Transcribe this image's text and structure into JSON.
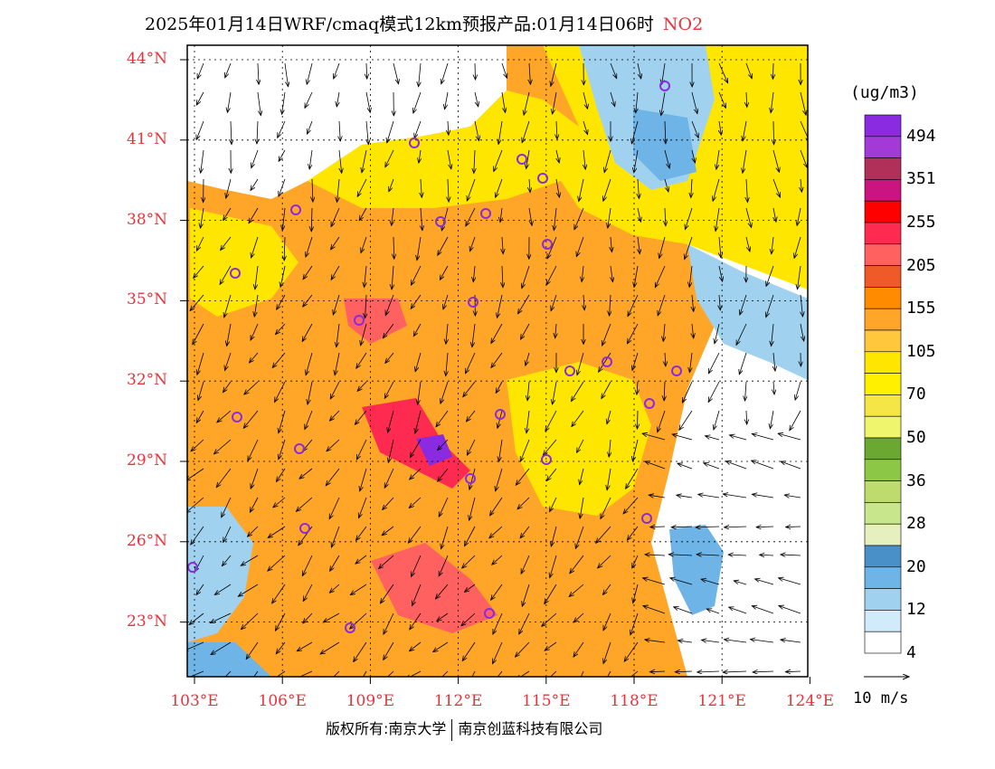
{
  "title": {
    "text": "2025年01月14日WRF/cmaq模式12km预报产品:01月14日06时",
    "species": "NO2"
  },
  "map": {
    "lat_labels": [
      "44°N",
      "41°N",
      "38°N",
      "35°N",
      "32°N",
      "29°N",
      "26°N",
      "23°N"
    ],
    "lon_labels": [
      "103°E",
      "106°E",
      "109°E",
      "112°E",
      "115°E",
      "118°E",
      "121°E",
      "124°E"
    ],
    "extent": {
      "lon_min": 103,
      "lon_max": 124,
      "lat_min": 21,
      "lat_max": 44
    }
  },
  "colorbar": {
    "unit": "(ug/m3)",
    "labels": [
      "494",
      "351",
      "255",
      "205",
      "155",
      "105",
      "70",
      "50",
      "36",
      "28",
      "20",
      "12",
      "4"
    ],
    "colors": [
      "#8a2be2",
      "#a33ad8",
      "#b0305a",
      "#cc1480",
      "#ff0000",
      "#ff2a50",
      "#ff6060",
      "#f05a28",
      "#ff8c00",
      "#ffa528",
      "#ffc83c",
      "#ffe600",
      "#fff000",
      "#f5e645",
      "#f0f56e",
      "#6aa832",
      "#8cc846",
      "#bedc6e",
      "#c8e68c",
      "#e6f0be",
      "#4a90c8",
      "#6eb4e6",
      "#a0d2f0",
      "#d2ebfa",
      "#ffffff"
    ]
  },
  "wind_reference": "10 m/s",
  "footer": {
    "left": "版权所有:南京大学",
    "right": "南京创蓝科技有限公司"
  }
}
